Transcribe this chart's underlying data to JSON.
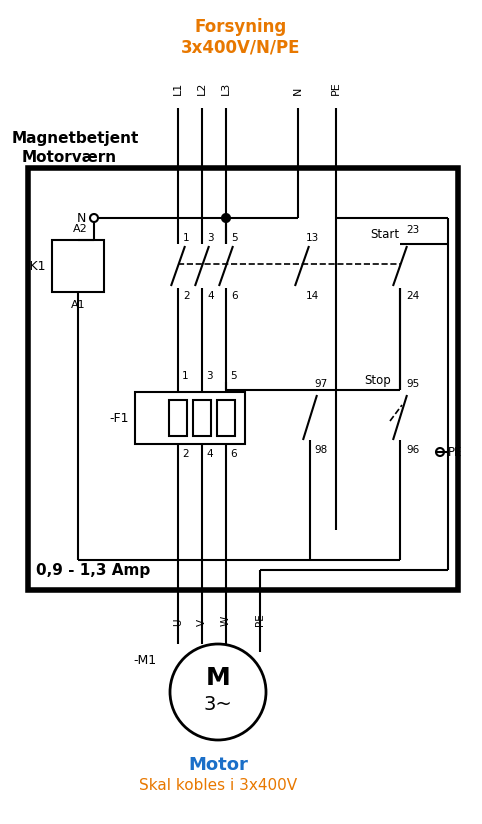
{
  "title_top": "Forsyning\n3x400V/N/PE",
  "title_top_color": "#E87800",
  "label_magnetbetjent_line1": "Magnetbetjent",
  "label_magnetbetjent_line2": "Motorværn",
  "label_ampere": "0,9 - 1,3 Amp",
  "label_motor": "Motor",
  "label_motor_color": "#1B6FC8",
  "label_motor_sub": "Skal kobles i 3x400V",
  "label_motor_sub_color": "#E87800",
  "bg_color": "#FFFFFF",
  "line_color": "#000000"
}
